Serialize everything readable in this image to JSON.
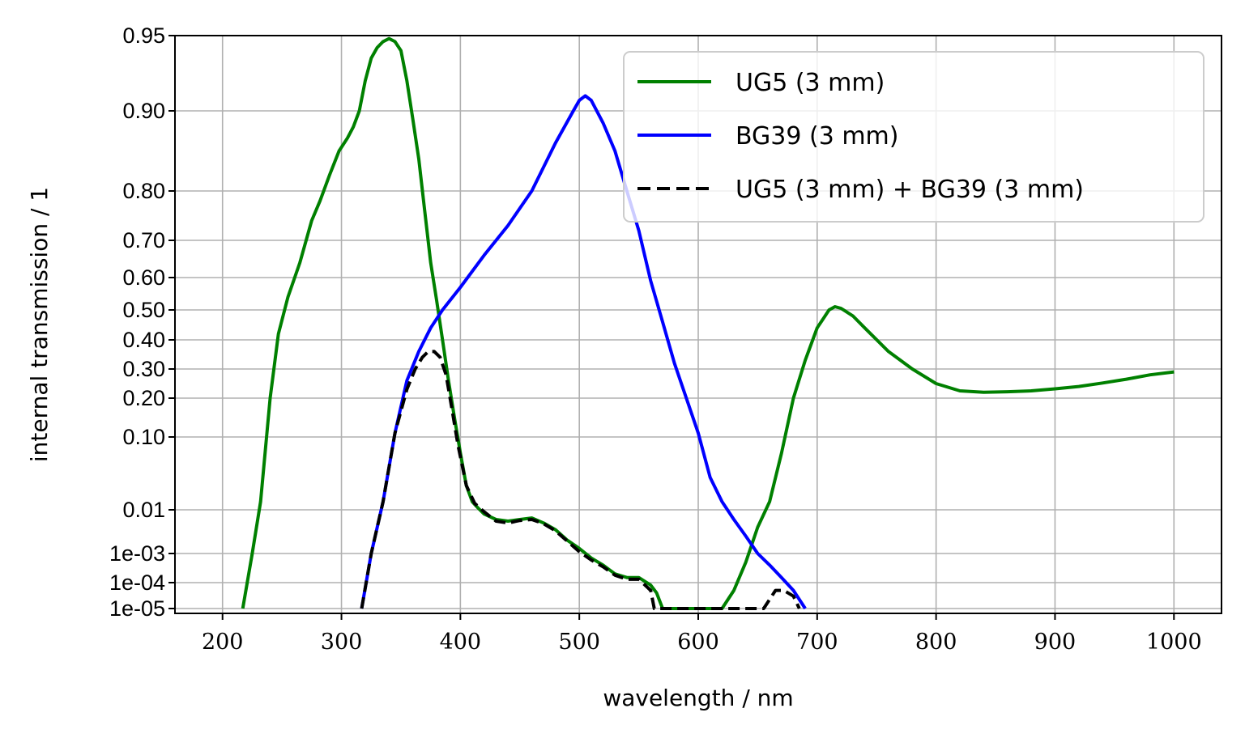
{
  "chart_data": {
    "type": "line",
    "xlabel": "wavelength / nm",
    "ylabel": "internal transmission / 1",
    "xlim": [
      160,
      1040
    ],
    "x_ticks": [
      200,
      300,
      400,
      500,
      600,
      700,
      800,
      900,
      1000
    ],
    "y_ticks": [
      "1e-05",
      "1e-04",
      "1e-03",
      "0.01",
      "0.10",
      "0.20",
      "0.30",
      "0.40",
      "0.50",
      "0.60",
      "0.70",
      "0.80",
      "0.90",
      "0.95"
    ],
    "y_scale": "nonlinear (tick positions as printed)",
    "grid": true,
    "legend_position": "top-right",
    "colors": {
      "ug5": "#008000",
      "bg39": "#0000ff",
      "combined": "#000000"
    },
    "series": [
      {
        "name": "UG5 (3 mm)",
        "style": "solid",
        "points": [
          [
            217,
            1e-05
          ],
          [
            225,
            0.001
          ],
          [
            232,
            0.02
          ],
          [
            240,
            0.2
          ],
          [
            247,
            0.42
          ],
          [
            255,
            0.54
          ],
          [
            265,
            0.64
          ],
          [
            275,
            0.74
          ],
          [
            282,
            0.78
          ],
          [
            290,
            0.82
          ],
          [
            298,
            0.85
          ],
          [
            305,
            0.866
          ],
          [
            310,
            0.88
          ],
          [
            315,
            0.9
          ],
          [
            320,
            0.92
          ],
          [
            325,
            0.935
          ],
          [
            330,
            0.942
          ],
          [
            335,
            0.946
          ],
          [
            340,
            0.948
          ],
          [
            345,
            0.946
          ],
          [
            350,
            0.94
          ],
          [
            355,
            0.92
          ],
          [
            360,
            0.89
          ],
          [
            365,
            0.84
          ],
          [
            370,
            0.76
          ],
          [
            375,
            0.64
          ],
          [
            380,
            0.53
          ],
          [
            385,
            0.4
          ],
          [
            390,
            0.26
          ],
          [
            395,
            0.15
          ],
          [
            400,
            0.08
          ],
          [
            405,
            0.04
          ],
          [
            410,
            0.02
          ],
          [
            415,
            0.012
          ],
          [
            420,
            0.008
          ],
          [
            430,
            0.006
          ],
          [
            440,
            0.0055
          ],
          [
            450,
            0.006
          ],
          [
            460,
            0.0065
          ],
          [
            470,
            0.005
          ],
          [
            480,
            0.0035
          ],
          [
            490,
            0.002
          ],
          [
            500,
            0.0013
          ],
          [
            510,
            0.0007
          ],
          [
            520,
            0.0004
          ],
          [
            530,
            0.0002
          ],
          [
            540,
            0.00015
          ],
          [
            550,
            0.00015
          ],
          [
            560,
            8e-05
          ],
          [
            565,
            4e-05
          ],
          [
            570,
            1e-05
          ],
          [
            620,
            1e-05
          ],
          [
            630,
            5e-05
          ],
          [
            640,
            0.0005
          ],
          [
            650,
            0.004
          ],
          [
            660,
            0.02
          ],
          [
            670,
            0.08
          ],
          [
            680,
            0.2
          ],
          [
            690,
            0.33
          ],
          [
            700,
            0.44
          ],
          [
            710,
            0.5
          ],
          [
            715,
            0.51
          ],
          [
            720,
            0.505
          ],
          [
            730,
            0.48
          ],
          [
            740,
            0.44
          ],
          [
            760,
            0.36
          ],
          [
            780,
            0.3
          ],
          [
            800,
            0.25
          ],
          [
            820,
            0.225
          ],
          [
            840,
            0.22
          ],
          [
            860,
            0.222
          ],
          [
            880,
            0.225
          ],
          [
            900,
            0.232
          ],
          [
            920,
            0.24
          ],
          [
            940,
            0.252
          ],
          [
            960,
            0.265
          ],
          [
            980,
            0.28
          ],
          [
            1000,
            0.29
          ]
        ]
      },
      {
        "name": "BG39 (3 mm)",
        "style": "solid",
        "points": [
          [
            317,
            1e-05
          ],
          [
            325,
            0.001
          ],
          [
            335,
            0.02
          ],
          [
            345,
            0.11
          ],
          [
            355,
            0.26
          ],
          [
            365,
            0.36
          ],
          [
            375,
            0.44
          ],
          [
            385,
            0.5
          ],
          [
            400,
            0.57
          ],
          [
            420,
            0.66
          ],
          [
            440,
            0.73
          ],
          [
            460,
            0.8
          ],
          [
            480,
            0.86
          ],
          [
            495,
            0.9
          ],
          [
            500,
            0.907
          ],
          [
            505,
            0.91
          ],
          [
            510,
            0.907
          ],
          [
            520,
            0.885
          ],
          [
            530,
            0.85
          ],
          [
            540,
            0.8
          ],
          [
            550,
            0.72
          ],
          [
            560,
            0.59
          ],
          [
            570,
            0.46
          ],
          [
            580,
            0.32
          ],
          [
            590,
            0.2
          ],
          [
            600,
            0.11
          ],
          [
            610,
            0.05
          ],
          [
            620,
            0.02
          ],
          [
            630,
            0.006
          ],
          [
            640,
            0.0025
          ],
          [
            650,
            0.001
          ],
          [
            660,
            0.0004
          ],
          [
            670,
            0.00015
          ],
          [
            680,
            5e-05
          ],
          [
            690,
            1e-05
          ]
        ]
      },
      {
        "name": "UG5 (3 mm) + BG39 (3 mm)",
        "style": "dashed",
        "points": [
          [
            317,
            1e-05
          ],
          [
            325,
            0.001
          ],
          [
            335,
            0.02
          ],
          [
            345,
            0.11
          ],
          [
            355,
            0.23
          ],
          [
            362,
            0.3
          ],
          [
            368,
            0.34
          ],
          [
            373,
            0.36
          ],
          [
            378,
            0.36
          ],
          [
            383,
            0.34
          ],
          [
            388,
            0.28
          ],
          [
            393,
            0.17
          ],
          [
            398,
            0.09
          ],
          [
            405,
            0.04
          ],
          [
            412,
            0.018
          ],
          [
            420,
            0.009
          ],
          [
            430,
            0.0055
          ],
          [
            440,
            0.005
          ],
          [
            450,
            0.0057
          ],
          [
            460,
            0.006
          ],
          [
            470,
            0.0048
          ],
          [
            480,
            0.0033
          ],
          [
            490,
            0.0019
          ],
          [
            500,
            0.0011
          ],
          [
            510,
            0.0006
          ],
          [
            520,
            0.00035
          ],
          [
            530,
            0.00018
          ],
          [
            540,
            0.00013
          ],
          [
            550,
            0.00013
          ],
          [
            560,
            5e-05
          ],
          [
            563,
            1e-05
          ],
          [
            655,
            1e-05
          ],
          [
            665,
            5e-05
          ],
          [
            672,
            5e-05
          ],
          [
            680,
            3e-05
          ],
          [
            685,
            1e-05
          ]
        ]
      }
    ]
  }
}
